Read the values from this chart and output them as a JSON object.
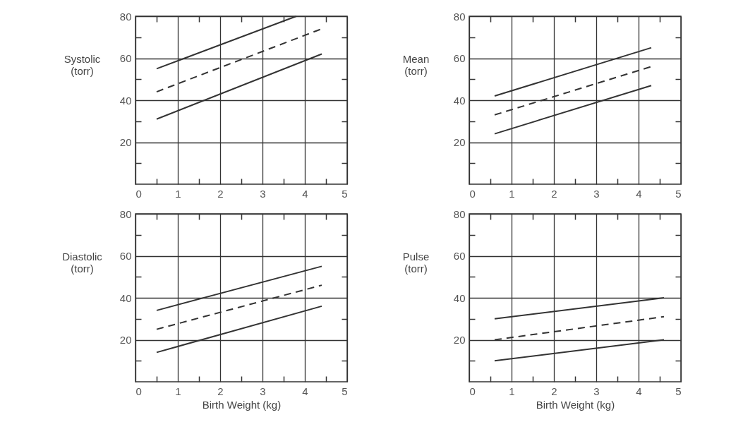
{
  "chart_data": [
    {
      "type": "line",
      "ylabel": "Systolic (torr)",
      "xlim": [
        0,
        5
      ],
      "ylim": [
        0,
        80
      ],
      "grid": true,
      "xticks": [
        0,
        {
          "value": 0.5,
          "label": null
        },
        1,
        {
          "value": 1.5,
          "label": null
        },
        2,
        {
          "value": 2.5,
          "label": null
        },
        3,
        {
          "value": 3.5,
          "label": null
        },
        4,
        {
          "value": 4.5,
          "label": null
        },
        5
      ],
      "yticks": [
        {
          "value": 10,
          "label": null
        },
        20,
        {
          "value": 30,
          "label": null
        },
        40,
        {
          "value": 50,
          "label": null
        },
        60,
        {
          "value": 70,
          "label": null
        },
        80
      ],
      "series": [
        {
          "color": "#333333",
          "line_style": "solid",
          "x": [
            0.5,
            3.8
          ],
          "values": [
            55,
            80
          ]
        },
        {
          "color": "#333333",
          "line_style": "dashed",
          "x": [
            0.5,
            4.4
          ],
          "values": [
            44,
            74
          ]
        },
        {
          "color": "#333333",
          "line_style": "solid",
          "x": [
            0.5,
            4.4
          ],
          "values": [
            31,
            62
          ]
        }
      ]
    },
    {
      "type": "line",
      "ylabel": "Mean (torr)",
      "xlim": [
        0,
        5
      ],
      "ylim": [
        0,
        80
      ],
      "grid": true,
      "xticks": [
        0,
        {
          "value": 0.5,
          "label": null
        },
        1,
        {
          "value": 1.5,
          "label": null
        },
        2,
        {
          "value": 2.5,
          "label": null
        },
        3,
        {
          "value": 3.5,
          "label": null
        },
        4,
        {
          "value": 4.5,
          "label": null
        },
        5
      ],
      "yticks": [
        {
          "value": 10,
          "label": null
        },
        20,
        {
          "value": 30,
          "label": null
        },
        40,
        {
          "value": 50,
          "label": null
        },
        60,
        {
          "value": 70,
          "label": null
        },
        80
      ],
      "series": [
        {
          "color": "#333333",
          "line_style": "solid",
          "x": [
            0.6,
            4.3
          ],
          "values": [
            42,
            65
          ]
        },
        {
          "color": "#333333",
          "line_style": "dashed",
          "x": [
            0.6,
            4.3
          ],
          "values": [
            33,
            56
          ]
        },
        {
          "color": "#333333",
          "line_style": "solid",
          "x": [
            0.6,
            4.3
          ],
          "values": [
            24,
            47
          ]
        }
      ]
    },
    {
      "type": "line",
      "ylabel": "Diastolic (torr)",
      "xlabel": "Birth Weight (kg)",
      "xlim": [
        0,
        5
      ],
      "ylim": [
        0,
        80
      ],
      "grid": true,
      "xticks": [
        0,
        {
          "value": 0.5,
          "label": null
        },
        1,
        {
          "value": 1.5,
          "label": null
        },
        2,
        {
          "value": 2.5,
          "label": null
        },
        3,
        {
          "value": 3.5,
          "label": null
        },
        4,
        {
          "value": 4.5,
          "label": null
        },
        5
      ],
      "yticks": [
        {
          "value": 10,
          "label": null
        },
        20,
        {
          "value": 30,
          "label": null
        },
        40,
        {
          "value": 50,
          "label": null
        },
        60,
        {
          "value": 70,
          "label": null
        },
        80
      ],
      "series": [
        {
          "color": "#333333",
          "line_style": "solid",
          "x": [
            0.5,
            4.4
          ],
          "values": [
            34,
            55
          ]
        },
        {
          "color": "#333333",
          "line_style": "dashed",
          "x": [
            0.5,
            4.4
          ],
          "values": [
            25,
            46
          ]
        },
        {
          "color": "#333333",
          "line_style": "solid",
          "x": [
            0.5,
            4.4
          ],
          "values": [
            14,
            36
          ]
        }
      ]
    },
    {
      "type": "line",
      "ylabel": "Pulse (torr)",
      "xlabel": "Birth Weight (kg)",
      "xlim": [
        0,
        5
      ],
      "ylim": [
        0,
        80
      ],
      "grid": true,
      "xticks": [
        0,
        {
          "value": 0.5,
          "label": null
        },
        1,
        {
          "value": 1.5,
          "label": null
        },
        2,
        {
          "value": 2.5,
          "label": null
        },
        3,
        {
          "value": 3.5,
          "label": null
        },
        4,
        {
          "value": 4.5,
          "label": null
        },
        5
      ],
      "yticks": [
        {
          "value": 10,
          "label": null
        },
        20,
        {
          "value": 30,
          "label": null
        },
        40,
        {
          "value": 50,
          "label": null
        },
        60,
        {
          "value": 70,
          "label": null
        },
        80
      ],
      "series": [
        {
          "color": "#333333",
          "line_style": "solid",
          "x": [
            0.6,
            4.6
          ],
          "values": [
            30,
            40
          ]
        },
        {
          "color": "#333333",
          "line_style": "dashed",
          "x": [
            0.6,
            4.6
          ],
          "values": [
            20,
            31
          ]
        },
        {
          "color": "#333333",
          "line_style": "solid",
          "x": [
            0.6,
            4.6
          ],
          "values": [
            10,
            20
          ]
        }
      ]
    }
  ]
}
